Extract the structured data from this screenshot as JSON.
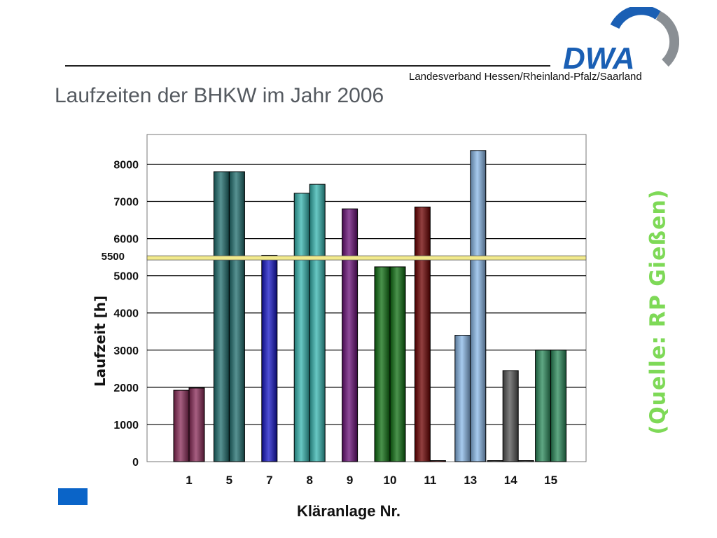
{
  "header": {
    "org_name": "Landesverband Hessen/Rheinland-Pfalz/Saarland",
    "logo_text": "DWA",
    "logo_colors": {
      "primary": "#1a5fb4",
      "secondary": "#8a8f94"
    }
  },
  "title": "Laufzeiten der BHKW im Jahr 2006",
  "source_note": "(Quelle: RP Gießen)",
  "chart_data": {
    "type": "bar",
    "xlabel": "Kläranlage Nr.",
    "ylabel": "Laufzeit [h]",
    "ylim": [
      0,
      8800
    ],
    "yticks": [
      0,
      1000,
      2000,
      3000,
      4000,
      5000,
      6000,
      7000,
      8000
    ],
    "grid": true,
    "reference_line": {
      "value": 5500,
      "label": "5500",
      "color": "#f2ea8c"
    },
    "categories": [
      {
        "label": "1",
        "values": [
          1920,
          1980
        ],
        "color": "#8a2a57"
      },
      {
        "label": "5",
        "values": [
          7800,
          7800
        ],
        "color": "#1f6e6e"
      },
      {
        "label": "7",
        "values": [
          5550
        ],
        "color": "#1616c8"
      },
      {
        "label": "8",
        "values": [
          7220,
          7460
        ],
        "color": "#35b5b0"
      },
      {
        "label": "9",
        "values": [
          6800
        ],
        "color": "#6a0f78"
      },
      {
        "label": "10",
        "values": [
          5240,
          5240
        ],
        "color": "#0d6e10"
      },
      {
        "label": "11",
        "values": [
          6850,
          0
        ],
        "color": "#6e0000"
      },
      {
        "label": "13",
        "values": [
          3400,
          8370
        ],
        "color": "#8ab8e8"
      },
      {
        "label": "14",
        "values": [
          0,
          2450,
          0
        ],
        "color": "#555555"
      },
      {
        "label": "15",
        "values": [
          3000,
          3000
        ],
        "color": "#2a8a5a"
      }
    ]
  }
}
